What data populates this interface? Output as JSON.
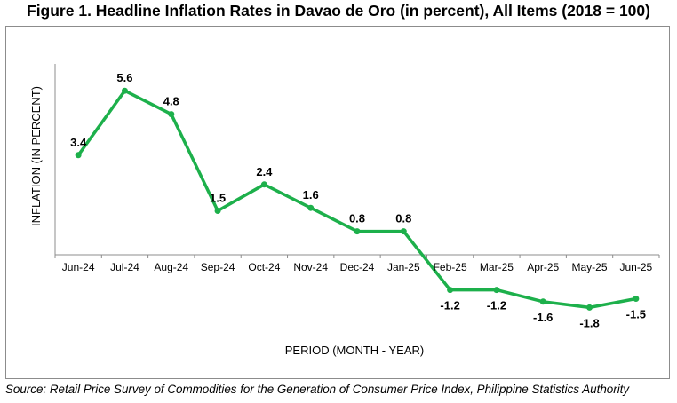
{
  "title": "Figure 1. Headline Inflation Rates in Davao de Oro (in percent), All Items (2018 = 100)",
  "source": "Source: Retail Price Survey of Commodities for the Generation of Consumer Price Index, Philippine Statistics Authority",
  "chart_data": {
    "type": "line",
    "title": "Figure 1. Headline Inflation Rates in Davao de Oro (in percent), All Items (2018 = 100)",
    "xlabel": "PERIOD (MONTH - YEAR)",
    "ylabel": "INFLATION (IN PERCENT)",
    "categories": [
      "Jun-24",
      "Jul-24",
      "Aug-24",
      "Sep-24",
      "Oct-24",
      "Nov-24",
      "Dec-24",
      "Jan-25",
      "Feb-25",
      "Mar-25",
      "Apr-25",
      "May-25",
      "Jun-25"
    ],
    "values": [
      3.4,
      5.6,
      4.8,
      1.5,
      2.4,
      1.6,
      0.8,
      0.8,
      -1.2,
      -1.2,
      -1.6,
      -1.8,
      -1.5
    ],
    "data_labels": [
      "3.4",
      "5.6",
      "4.8",
      "1.5",
      "2.4",
      "1.6",
      "0.8",
      "0.8",
      "-1.2",
      "-1.2",
      "-1.6",
      "-1.8",
      "-1.5"
    ],
    "line_color": "#1db04b",
    "grid": false,
    "legend": "none"
  }
}
